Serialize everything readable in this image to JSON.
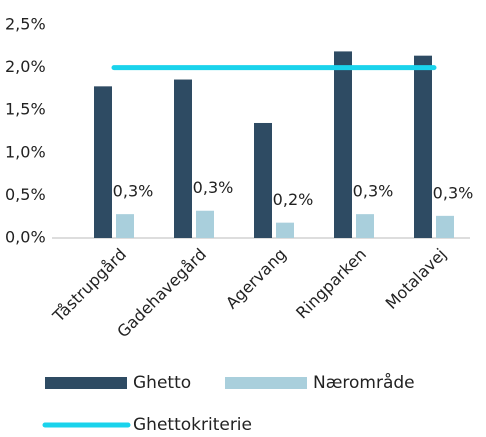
{
  "chart_data": {
    "type": "bar",
    "categories": [
      "Tåstrupgård",
      "Gadehavegård",
      "Agervang",
      "Ringparken",
      "Motalavej"
    ],
    "series": [
      {
        "name": "Ghetto",
        "color": "#2e4b63",
        "values": [
          1.78,
          1.86,
          1.35,
          2.19,
          2.14
        ]
      },
      {
        "name": "Nærområde",
        "color": "#a9cfdc",
        "values": [
          0.28,
          0.32,
          0.18,
          0.28,
          0.26
        ],
        "value_labels": [
          "0,3%",
          "0,3%",
          "0,2%",
          "0,3%",
          "0,3%"
        ]
      },
      {
        "name": "Ghettokriterie",
        "type": "line",
        "color": "#1ad3ec",
        "values": [
          2.0,
          2.0,
          2.0,
          2.0,
          2.0
        ]
      }
    ],
    "ylim": [
      0,
      2.5
    ],
    "yticks": [
      {
        "value": 0,
        "label": "0,0%"
      },
      {
        "value": 0.5,
        "label": "0,5%"
      },
      {
        "value": 1.0,
        "label": "1,0%"
      },
      {
        "value": 1.5,
        "label": "1,5%"
      },
      {
        "value": 2.0,
        "label": "2,0%"
      },
      {
        "value": 2.5,
        "label": "2,5%"
      }
    ],
    "grid": false
  }
}
